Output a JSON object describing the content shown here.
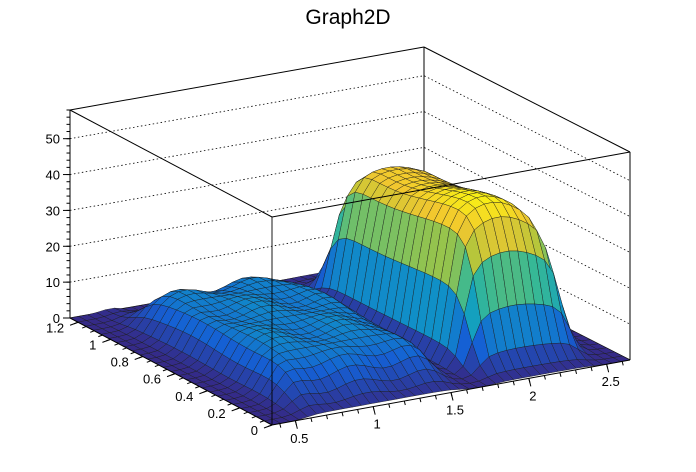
{
  "chart_data": {
    "type": "surface",
    "title": "Graph2D",
    "xlabel": "",
    "ylabel": "",
    "zlabel": "",
    "xlim": [
      0.35,
      2.65
    ],
    "ylim": [
      0,
      1.25
    ],
    "zlim": [
      0,
      58
    ],
    "x_ticks": [
      "0.5",
      "1",
      "1.5",
      "2",
      "2.5"
    ],
    "y_ticks": [
      "0",
      "0.2",
      "0.4",
      "0.6",
      "0.8",
      "1",
      "1.2"
    ],
    "z_ticks": [
      "0",
      "10",
      "20",
      "30",
      "40",
      "50"
    ],
    "grid": true,
    "colormap": [
      "#352a87",
      "#1560d4",
      "#0f9dc4",
      "#36b896",
      "#aac63d",
      "#f2c72f",
      "#f9fb0e"
    ],
    "surface_features": [
      {
        "name": "plateau",
        "x_range": [
          0.5,
          1.55
        ],
        "y_range": [
          0.1,
          1.1
        ],
        "z_approx": 11
      },
      {
        "name": "peak",
        "x_range": [
          1.75,
          2.45
        ],
        "y_range": [
          0.15,
          1.05
        ],
        "z_max_approx": 43
      },
      {
        "name": "dip",
        "x": 0.5,
        "y": 0.05,
        "z_approx": 0
      }
    ]
  }
}
